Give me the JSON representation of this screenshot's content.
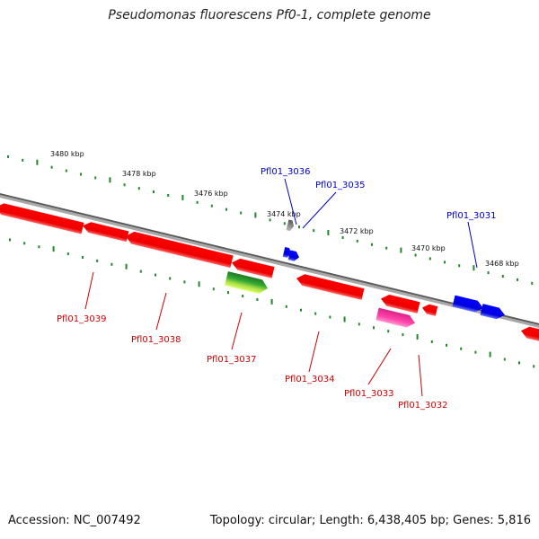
{
  "title": "Pseudomonas fluorescens Pf0-1, complete genome",
  "footer": {
    "accession": "Accession: NC_007492",
    "summary": "Topology: circular; Length: 6,438,405 bp; Genes: 5,816"
  },
  "ruler_labels": [
    "3480 kbp",
    "3478 kbp",
    "3476 kbp",
    "3474 kbp",
    "3472 kbp",
    "3470 kbp",
    "3468 kbp"
  ],
  "genes": [
    {
      "label": "Pfl01_3036",
      "color": "#0000cc"
    },
    {
      "label": "Pfl01_3035",
      "color": "#0000cc"
    },
    {
      "label": "Pfl01_3031",
      "color": "#0000cc"
    },
    {
      "label": "Pfl01_3039",
      "color": "#cc0000"
    },
    {
      "label": "Pfl01_3038",
      "color": "#cc0000"
    },
    {
      "label": "Pfl01_3037",
      "color": "#cc0000"
    },
    {
      "label": "Pfl01_3034",
      "color": "#cc0000"
    },
    {
      "label": "Pfl01_3033",
      "color": "#cc0000"
    },
    {
      "label": "Pfl01_3032",
      "color": "#cc0000"
    }
  ],
  "colors": {
    "forward_gene": "#0000ff",
    "reverse_gene": "#ff0000",
    "rna_gene": "#ff33aa",
    "green_feature": "#33aa33",
    "backbone": "#888888",
    "ruler": "#22882a"
  }
}
